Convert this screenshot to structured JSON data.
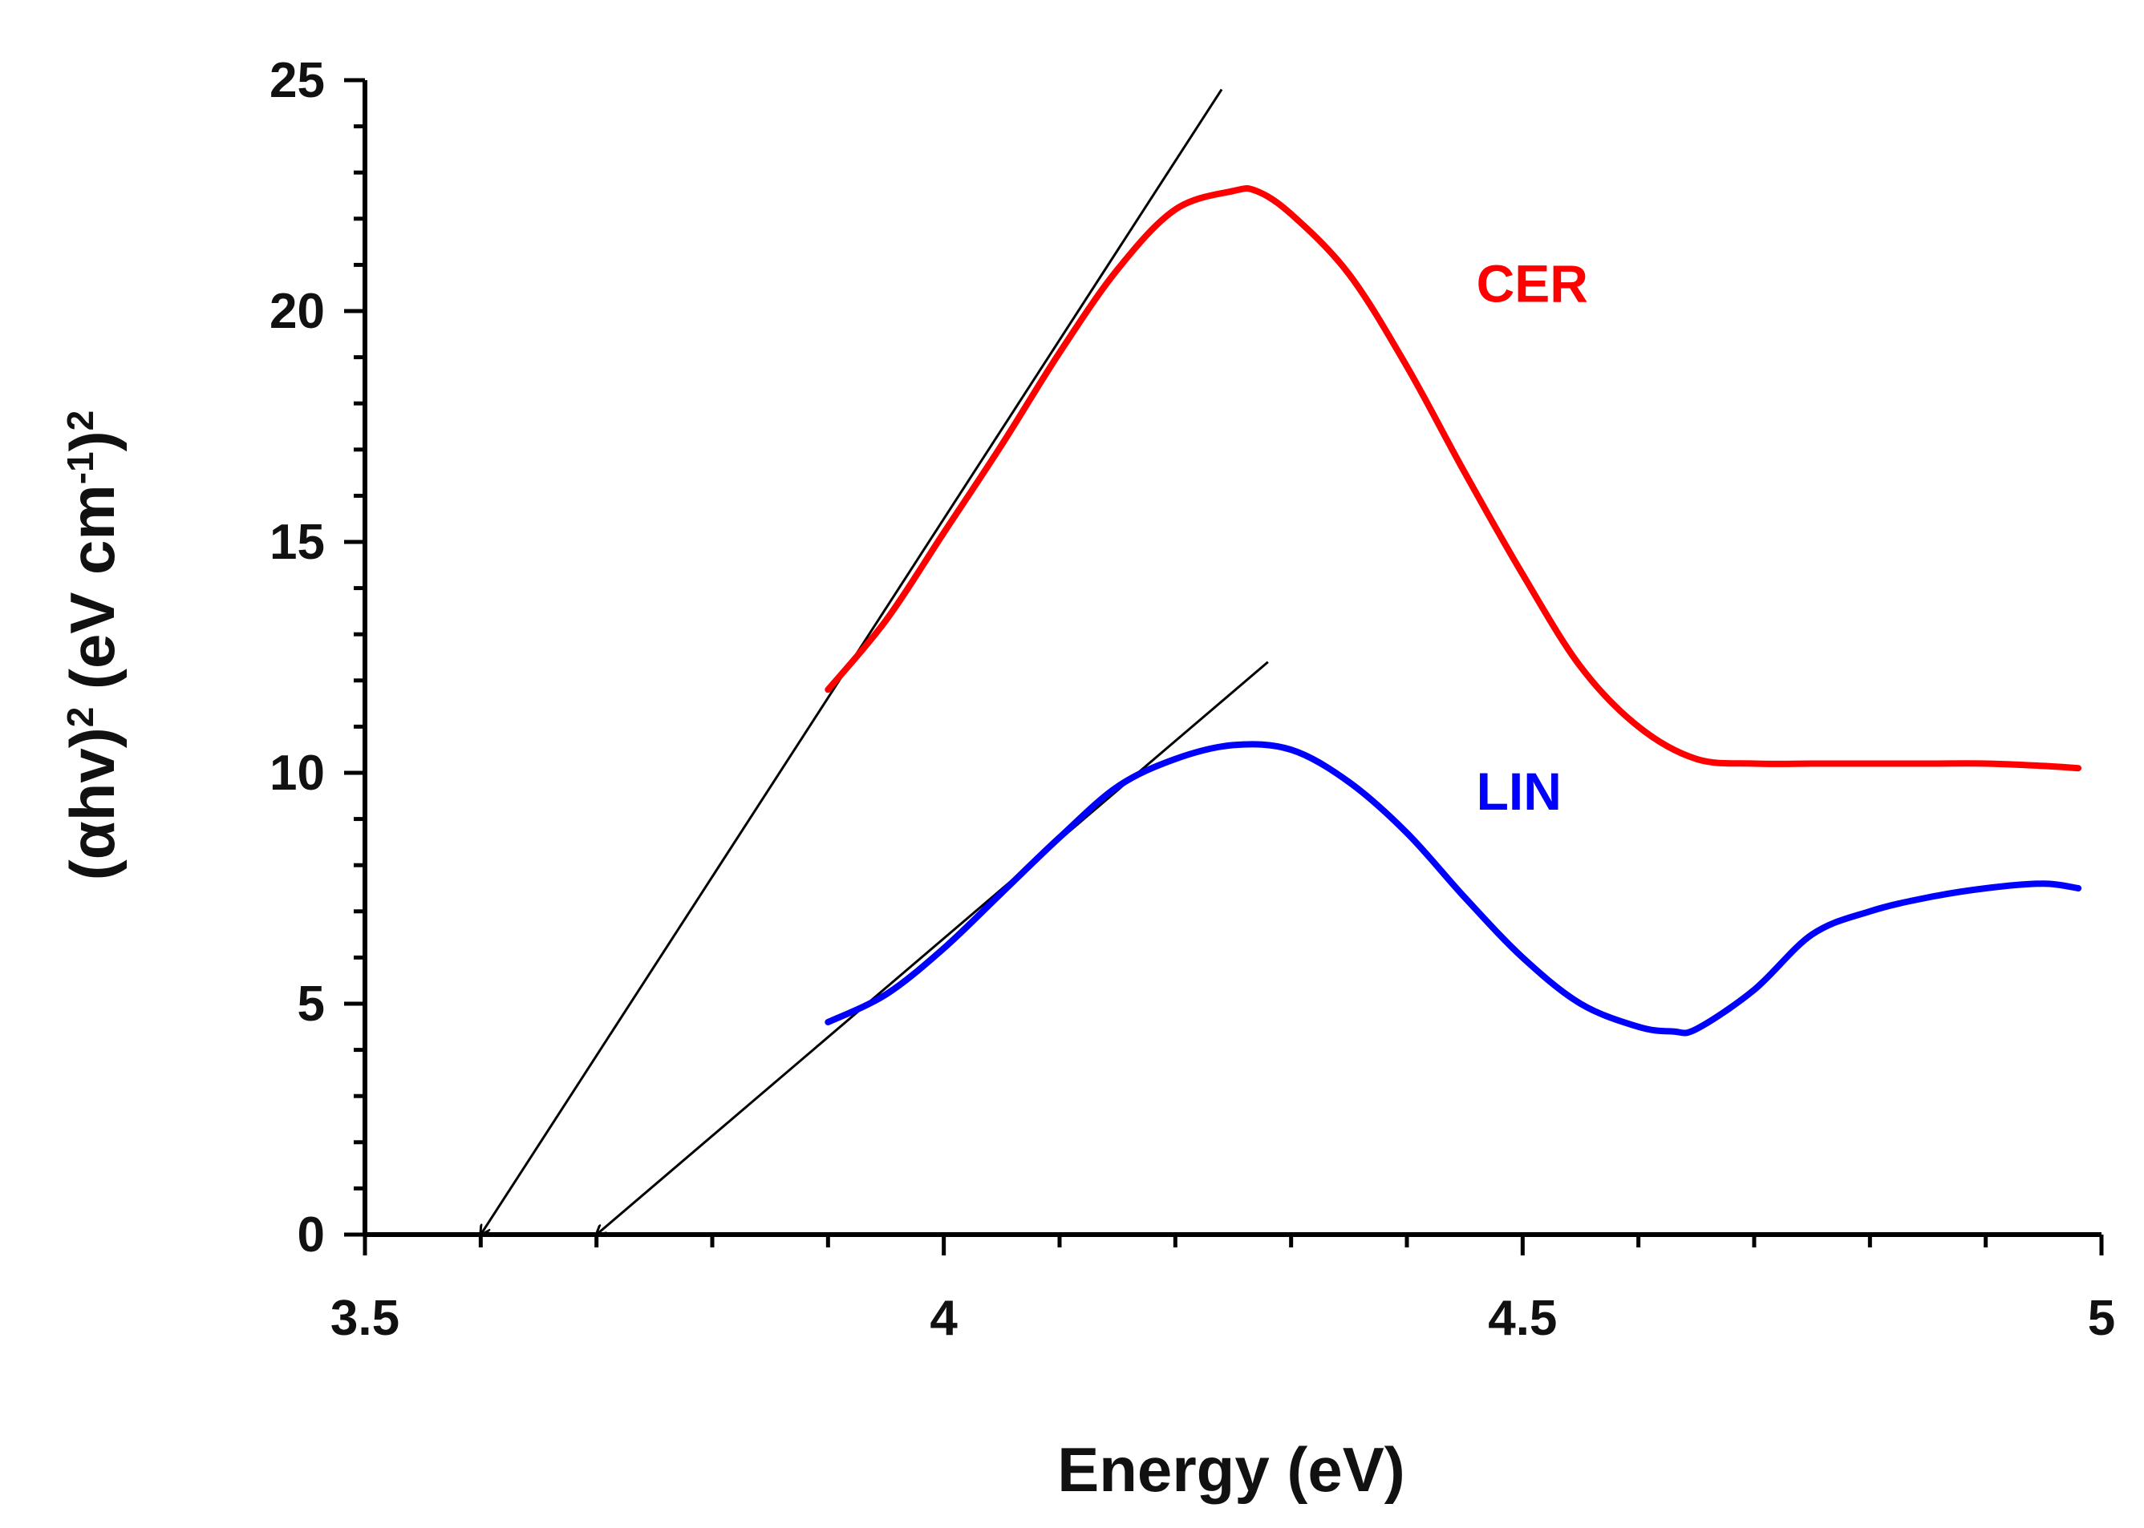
{
  "chart_data": {
    "type": "line",
    "title": "",
    "xlabel": "Energy (eV)",
    "ylabel": {
      "alpha": "(αhv)",
      "sup1": "2",
      "unit_open": " (eV cm",
      "sup2": "-1",
      "unit_close": ")",
      "sup3": "2"
    },
    "xlim": [
      3.5,
      5
    ],
    "ylim": [
      0,
      25
    ],
    "x_ticks": [
      "3.5",
      "4",
      "4.5",
      "5"
    ],
    "x_tick_values": [
      3.5,
      4,
      4.5,
      5
    ],
    "y_ticks": [
      "0",
      "5",
      "10",
      "15",
      "20",
      "25"
    ],
    "y_tick_values": [
      0,
      5,
      10,
      15,
      20,
      25
    ],
    "grid": false,
    "series": [
      {
        "name": "CER",
        "color": "#ff0000",
        "x": [
          3.9,
          3.95,
          4.0,
          4.05,
          4.1,
          4.15,
          4.2,
          4.25,
          4.27,
          4.3,
          4.35,
          4.4,
          4.45,
          4.5,
          4.55,
          4.6,
          4.65,
          4.7,
          4.75,
          4.8,
          4.85,
          4.9,
          4.95,
          4.98
        ],
        "y": [
          11.8,
          13.3,
          15.2,
          17.1,
          19.1,
          20.9,
          22.2,
          22.6,
          22.6,
          22.1,
          20.8,
          18.8,
          16.5,
          14.3,
          12.3,
          11.0,
          10.3,
          10.2,
          10.2,
          10.2,
          10.2,
          10.2,
          10.15,
          10.1
        ]
      },
      {
        "name": "LIN",
        "color": "#0000ff",
        "x": [
          3.9,
          3.95,
          4.0,
          4.05,
          4.1,
          4.15,
          4.2,
          4.25,
          4.3,
          4.35,
          4.4,
          4.45,
          4.5,
          4.55,
          4.6,
          4.63,
          4.65,
          4.7,
          4.75,
          4.8,
          4.85,
          4.9,
          4.95,
          4.98
        ],
        "y": [
          4.6,
          5.2,
          6.2,
          7.4,
          8.6,
          9.7,
          10.3,
          10.6,
          10.5,
          9.8,
          8.7,
          7.3,
          6.0,
          5.0,
          4.5,
          4.4,
          4.45,
          5.3,
          6.5,
          7.0,
          7.3,
          7.5,
          7.6,
          7.5
        ]
      }
    ],
    "fit_lines": [
      {
        "series": "CER",
        "x": [
          3.6,
          4.24
        ],
        "y": [
          0,
          24.8
        ],
        "x_intercept": 3.6,
        "color": "#000000"
      },
      {
        "series": "LIN",
        "x": [
          3.7,
          4.28
        ],
        "y": [
          0,
          12.4
        ],
        "x_intercept": 3.7,
        "color": "#000000"
      }
    ],
    "annotations": [
      {
        "text": "CER",
        "x": 4.46,
        "y": 20.2,
        "color": "#ff0000"
      },
      {
        "text": "LIN",
        "x": 4.46,
        "y": 9.2,
        "color": "#0000ff"
      }
    ]
  }
}
